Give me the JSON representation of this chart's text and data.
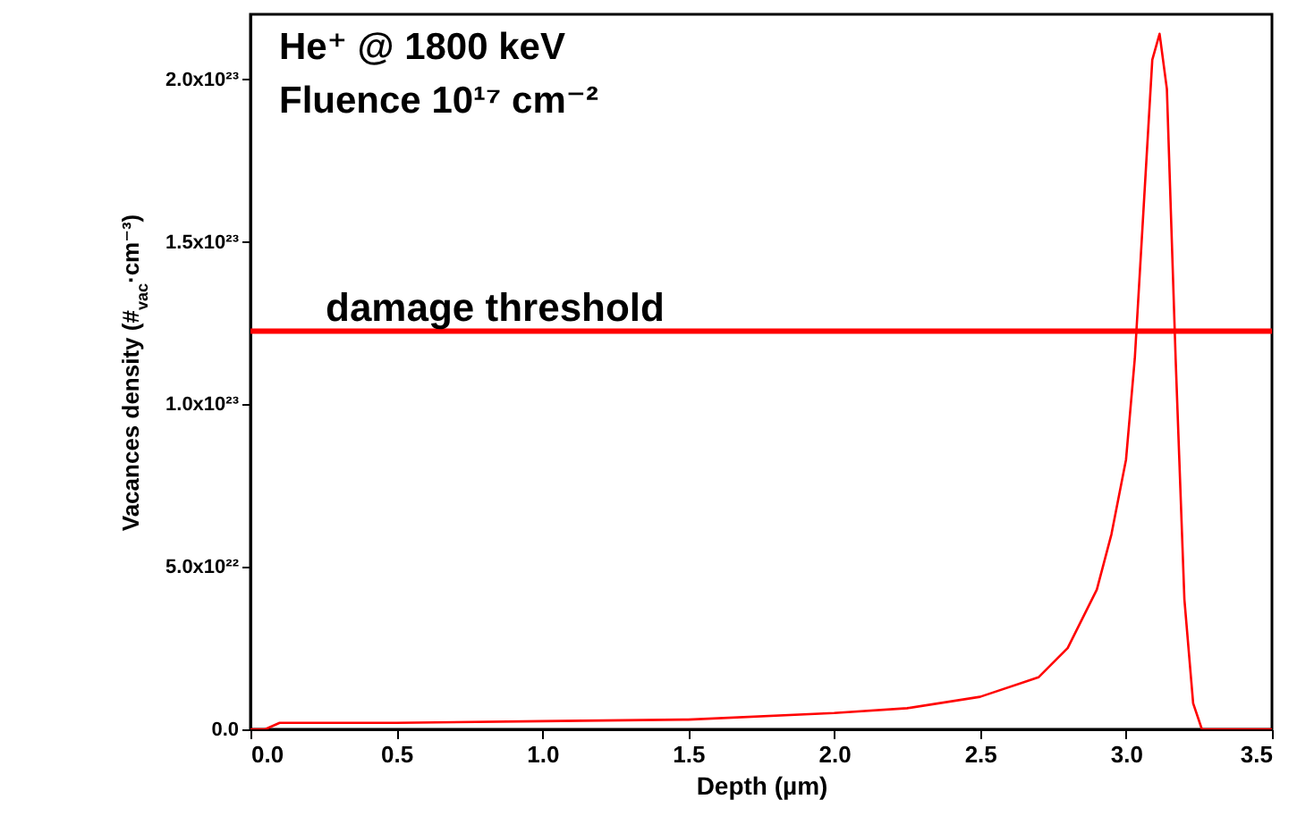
{
  "chart_data": {
    "type": "line",
    "annotations": [
      "He⁺ @ 1800 keV",
      "Fluence 10¹⁷ cm⁻²"
    ],
    "xlabel": "Depth (µm)",
    "ylabel": "Vacances density (#$_{vac}$·cm⁻³)",
    "x": [
      0,
      0.05,
      0.1,
      0.5,
      1.0,
      1.5,
      2.0,
      2.25,
      2.5,
      2.7,
      2.8,
      2.9,
      2.95,
      3.0,
      3.03,
      3.06,
      3.09,
      3.115,
      3.14,
      3.17,
      3.2,
      3.23,
      3.26,
      3.5
    ],
    "series": [
      {
        "color": "#ff0000",
        "values": [
          0,
          0,
          2e+21,
          2e+21,
          2.5e+21,
          3e+21,
          5e+21,
          6.5e+21,
          1e+22,
          1.6e+22,
          2.5e+22,
          4.3e+22,
          6e+22,
          8.3e+22,
          1.14e+23,
          1.6e+23,
          2.06e+23,
          2.14e+23,
          1.97e+23,
          1.14e+23,
          4e+22,
          8e+21,
          0,
          0
        ]
      }
    ],
    "xlim": [
      0,
      3.5
    ],
    "ylim": [
      0,
      2.2e+23
    ],
    "xticks": [
      {
        "value": 0,
        "label": "0.0"
      },
      {
        "value": 0.5,
        "label": "0.5"
      },
      {
        "value": 1,
        "label": "1.0"
      },
      {
        "value": 1.5,
        "label": "1.5"
      },
      {
        "value": 2,
        "label": "2.0"
      },
      {
        "value": 2.5,
        "label": "2.5"
      },
      {
        "value": 3,
        "label": "3.0"
      },
      {
        "value": 3.5,
        "label": "3.5"
      }
    ],
    "yticks": [
      {
        "value": 0,
        "label": "0.0"
      },
      {
        "value": 5e+22,
        "label": "5.0x10²²"
      },
      {
        "value": 1e+23,
        "label": "1.0x10²³"
      },
      {
        "value": 1.5e+23,
        "label": "1.5x10²³"
      },
      {
        "value": 2e+23,
        "label": "2.0x10²³"
      }
    ],
    "ref_lines": [
      {
        "axis": "y",
        "value": 1.225e+23,
        "label": "damage threshold",
        "color": "#ff0000"
      }
    ],
    "grid": false
  }
}
